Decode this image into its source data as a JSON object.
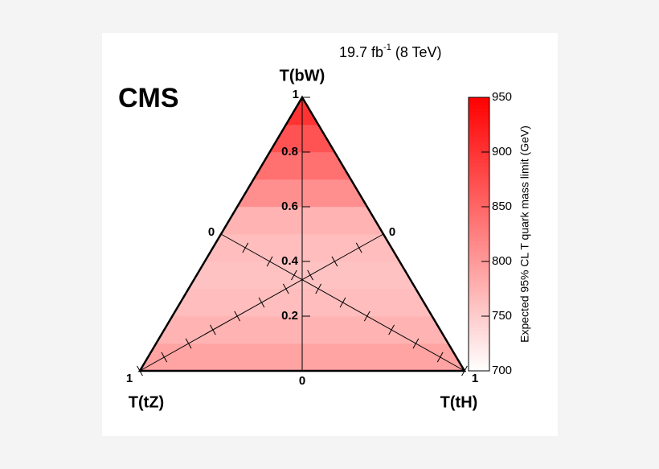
{
  "chart_data": {
    "type": "ternary",
    "experiment": "CMS",
    "lumi": "19.7 fb",
    "lumi_exponent": "-1",
    "energy": "(8 TeV)",
    "top_label": "T(bW)",
    "left_label": "T(tZ)",
    "right_label": "T(tH)",
    "bw_ticks": [
      0,
      0.2,
      0.4,
      0.6,
      0.8,
      1
    ],
    "tz_ticks": [
      0,
      0.1,
      0.2,
      0.3,
      0.4,
      0.5,
      0.6,
      0.7,
      0.8,
      0.9,
      1
    ],
    "tz_tick_labels": [
      0,
      1
    ],
    "th_ticks": [
      0,
      0.1,
      0.2,
      0.3,
      0.4,
      0.5,
      0.6,
      0.7,
      0.8,
      0.9,
      1
    ],
    "th_tick_labels": [
      0,
      1
    ],
    "bands": [
      {
        "bw": [
          0,
          0.1
        ],
        "value": 790
      },
      {
        "bw": [
          0.1,
          0.2
        ],
        "value": 775
      },
      {
        "bw": [
          0.2,
          0.3
        ],
        "value": 765
      },
      {
        "bw": [
          0.3,
          0.4
        ],
        "value": 760
      },
      {
        "bw": [
          0.4,
          0.5
        ],
        "value": 765
      },
      {
        "bw": [
          0.5,
          0.6
        ],
        "value": 775
      },
      {
        "bw": [
          0.6,
          0.7
        ],
        "value": 810
      },
      {
        "bw": [
          0.7,
          0.8
        ],
        "value": 840
      },
      {
        "bw": [
          0.8,
          0.9
        ],
        "value": 870
      },
      {
        "bw": [
          0.9,
          1
        ],
        "value": 900
      }
    ],
    "zlabel": "Expected 95% CL T quark mass limit (GeV)",
    "zlim": [
      700,
      950
    ],
    "zticks": [
      700,
      750,
      800,
      850,
      900,
      950
    ],
    "color_low": "#ffffff",
    "color_high": "#ff0000"
  }
}
